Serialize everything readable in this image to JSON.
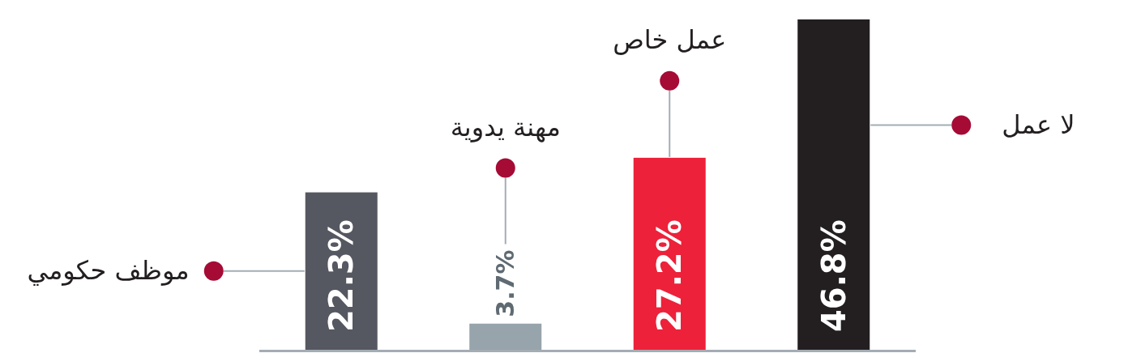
{
  "chart_data": {
    "type": "bar",
    "categories": [
      null,
      null,
      null,
      null
    ],
    "values": [
      22.3,
      3.7,
      27.2,
      46.8
    ],
    "colors": [
      "#555761",
      "#97a4ab",
      "#ed213a",
      "#231f20"
    ],
    "value_labels": [
      "22.3%",
      "3.7%",
      "27.2%",
      "46.8%"
    ],
    "annotations": [
      "موظف حكومي",
      "مهنة يدوية",
      "عمل خاص",
      "لا عمل"
    ]
  }
}
